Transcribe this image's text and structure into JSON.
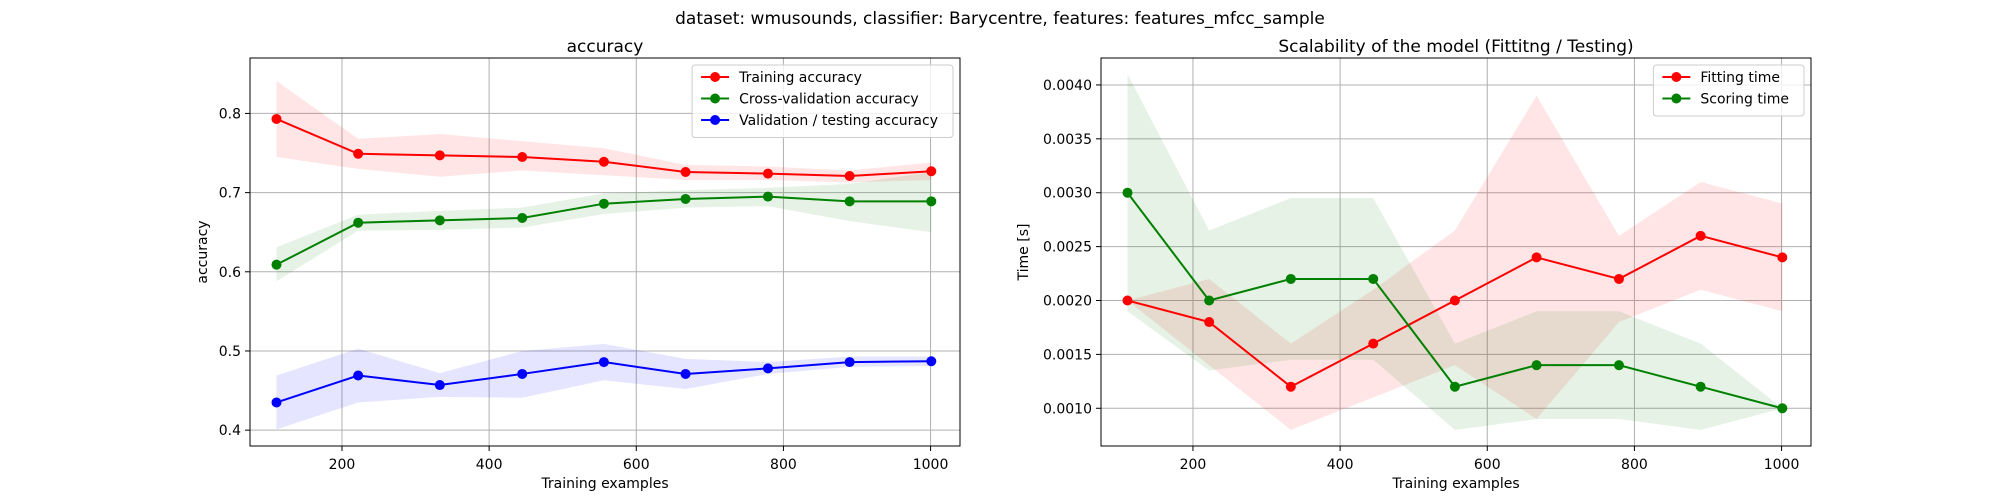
{
  "figure": {
    "suptitle": "dataset: wmusounds, classifier: Barycentre, features: features_mfcc_sample"
  },
  "chart_data": [
    {
      "type": "line",
      "title": "accuracy",
      "xlabel": "Training examples",
      "ylabel": "accuracy",
      "x": [
        111,
        222,
        333,
        445,
        556,
        667,
        779,
        890,
        1001
      ],
      "xlim": [
        75,
        1040
      ],
      "ylim": [
        0.38,
        0.87
      ],
      "xticks": [
        200,
        400,
        600,
        800,
        1000
      ],
      "yticks": [
        0.4,
        0.5,
        0.6,
        0.7,
        0.8
      ],
      "ytick_labels": [
        "0.4",
        "0.5",
        "0.6",
        "0.7",
        "0.8"
      ],
      "grid": true,
      "legend_position": "upper right",
      "series": [
        {
          "name": "Training accuracy",
          "color": "#ff0000",
          "values": [
            0.793,
            0.749,
            0.747,
            0.745,
            0.739,
            0.726,
            0.724,
            0.721,
            0.727
          ],
          "band_low": [
            0.745,
            0.73,
            0.72,
            0.728,
            0.722,
            0.716,
            0.716,
            0.713,
            0.716
          ],
          "band_high": [
            0.841,
            0.768,
            0.774,
            0.765,
            0.756,
            0.735,
            0.733,
            0.728,
            0.738
          ]
        },
        {
          "name": "Cross-validation accuracy",
          "color": "#008000",
          "values": [
            0.609,
            0.662,
            0.665,
            0.668,
            0.686,
            0.692,
            0.695,
            0.689,
            0.689
          ],
          "band_low": [
            0.588,
            0.652,
            0.653,
            0.656,
            0.673,
            0.681,
            0.683,
            0.664,
            0.65
          ],
          "band_high": [
            0.631,
            0.672,
            0.677,
            0.681,
            0.699,
            0.703,
            0.706,
            0.711,
            0.726
          ]
        },
        {
          "name": "Validation / testing accuracy",
          "color": "#0000ff",
          "values": [
            0.435,
            0.469,
            0.457,
            0.471,
            0.486,
            0.471,
            0.478,
            0.486,
            0.487
          ],
          "band_low": [
            0.401,
            0.435,
            0.442,
            0.441,
            0.463,
            0.452,
            0.471,
            0.48,
            0.481
          ],
          "band_high": [
            0.469,
            0.503,
            0.472,
            0.5,
            0.509,
            0.49,
            0.486,
            0.493,
            0.493
          ]
        }
      ]
    },
    {
      "type": "line",
      "title": "Scalability of the model (Fittitng / Testing)",
      "xlabel": "Training examples",
      "ylabel": "Time [s]",
      "x": [
        111,
        222,
        333,
        445,
        556,
        667,
        779,
        890,
        1001
      ],
      "xlim": [
        75,
        1040
      ],
      "ylim": [
        0.00065,
        0.00425
      ],
      "xticks": [
        200,
        400,
        600,
        800,
        1000
      ],
      "yticks": [
        0.001,
        0.0015,
        0.002,
        0.0025,
        0.003,
        0.0035,
        0.004
      ],
      "ytick_labels": [
        "0.0010",
        "0.0015",
        "0.0020",
        "0.0025",
        "0.0030",
        "0.0035",
        "0.0040"
      ],
      "grid": true,
      "legend_position": "upper right",
      "series": [
        {
          "name": "Fitting time",
          "color": "#ff0000",
          "values": [
            0.002,
            0.0018,
            0.0012,
            0.0016,
            0.002,
            0.0024,
            0.0022,
            0.0026,
            0.0024
          ],
          "band_low": [
            0.002,
            0.0014,
            0.0008,
            0.0011,
            0.0014,
            0.0009,
            0.0018,
            0.0021,
            0.0019
          ],
          "band_high": [
            0.002,
            0.0022,
            0.0016,
            0.0021,
            0.00265,
            0.0039,
            0.0026,
            0.0031,
            0.0029
          ]
        },
        {
          "name": "Scoring time",
          "color": "#008000",
          "values": [
            0.003,
            0.002,
            0.0022,
            0.0022,
            0.0012,
            0.0014,
            0.0014,
            0.0012,
            0.001
          ],
          "band_low": [
            0.0019,
            0.00135,
            0.00145,
            0.00145,
            0.0008,
            0.0009,
            0.0009,
            0.0008,
            0.001
          ],
          "band_high": [
            0.0041,
            0.00265,
            0.00295,
            0.00295,
            0.0016,
            0.0019,
            0.0019,
            0.0016,
            0.001
          ]
        }
      ]
    }
  ]
}
